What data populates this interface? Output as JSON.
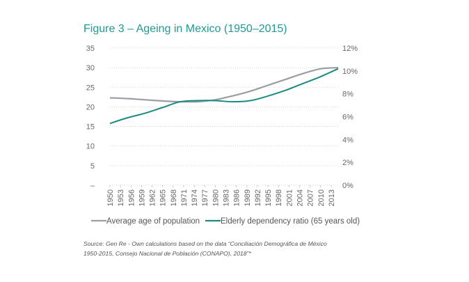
{
  "figure": {
    "title": "Figure 3 – Ageing in Mexico (1950–2015)"
  },
  "chart_data": {
    "type": "line",
    "x": [
      "1950",
      "1953",
      "1956",
      "1959",
      "1962",
      "1965",
      "1968",
      "1971",
      "1974",
      "1977",
      "1980",
      "1983",
      "1986",
      "1989",
      "1992",
      "1995",
      "1998",
      "2001",
      "2004",
      "2007",
      "2010",
      "2013"
    ],
    "x_range": [
      1950,
      2015
    ],
    "left_axis": {
      "ticks": [
        "–",
        "5",
        "10",
        "15",
        "20",
        "25",
        "30",
        "35"
      ],
      "range": [
        0,
        35
      ]
    },
    "right_axis": {
      "ticks": [
        "0%",
        "2%",
        "4%",
        "6%",
        "8%",
        "10%",
        "12%"
      ],
      "range": [
        0,
        12
      ]
    },
    "series": [
      {
        "name": "Average age of population",
        "axis": "left",
        "color": "#9a9ea3",
        "x": [
          1950,
          1955,
          1960,
          1965,
          1970,
          1975,
          1980,
          1985,
          1990,
          1995,
          2000,
          2005,
          2010,
          2015
        ],
        "values": [
          22.3,
          22.1,
          21.8,
          21.5,
          21.3,
          21.3,
          21.8,
          22.8,
          24.0,
          25.5,
          27.0,
          28.5,
          29.7,
          30.0
        ]
      },
      {
        "name": "Elderly dependency ratio (65 years old)",
        "axis": "right",
        "color": "#1a8a83",
        "x": [
          1950,
          1955,
          1960,
          1965,
          1970,
          1975,
          1980,
          1985,
          1990,
          1995,
          2000,
          2005,
          2010,
          2015
        ],
        "values": [
          5.4,
          5.9,
          6.3,
          6.8,
          7.3,
          7.4,
          7.4,
          7.3,
          7.4,
          7.8,
          8.3,
          8.9,
          9.5,
          10.2
        ]
      }
    ],
    "grid": true,
    "legend": "bottom"
  },
  "source": {
    "line1": "Source: Gen Re - Own calculations based on the data “Conciliación Demográfica de México",
    "line2": "1950-2015, Consejo Nacional de Población (CONAPO), 2018”*"
  }
}
